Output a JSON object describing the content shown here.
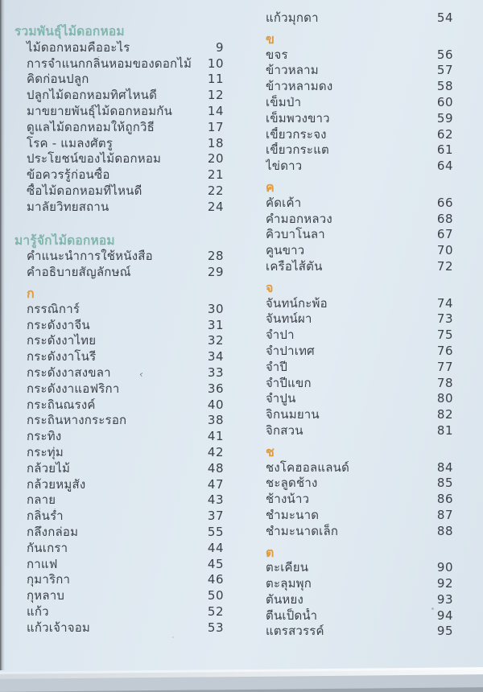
{
  "document": {
    "kind": "book-table-of-contents",
    "stray_mark": "‹",
    "columns": [
      {
        "name": "left",
        "rows": [
          {
            "kind": "header",
            "text": "รวมพันธุ์ไม้ดอกหอม"
          },
          {
            "kind": "entry",
            "text": "ไม้ดอกหอมคืออะไร",
            "page": "9"
          },
          {
            "kind": "entry",
            "text": "การจำแนกกลิ่นหอมของดอกไม้",
            "page": "10"
          },
          {
            "kind": "entry",
            "text": "คิดก่อนปลูก",
            "page": "11"
          },
          {
            "kind": "entry",
            "text": "ปลูกไม้ดอกหอมทิศไหนดี",
            "page": "12"
          },
          {
            "kind": "entry",
            "text": "มาขยายพันธุ์ไม้ดอกหอมกัน",
            "page": "14"
          },
          {
            "kind": "entry",
            "text": "ดูแลไม้ดอกหอมให้ถูกวิธี",
            "page": "17"
          },
          {
            "kind": "entry",
            "text": "โรค - แมลงศัตรู",
            "page": "18"
          },
          {
            "kind": "entry",
            "text": "ประโยชน์ของไม้ดอกหอม",
            "page": "20"
          },
          {
            "kind": "entry",
            "text": "ข้อควรรู้ก่อนซื้อ",
            "page": "21"
          },
          {
            "kind": "entry",
            "text": "ซื้อไม้ดอกหอมที่ไหนดี",
            "page": "22"
          },
          {
            "kind": "entry",
            "text": "มาลัยวิทยสถาน",
            "page": "24"
          },
          {
            "kind": "header",
            "text": "มารู้จักไม้ดอกหอม",
            "gap": "lg"
          },
          {
            "kind": "entry",
            "text": "คำแนะนำการใช้หนังสือ",
            "page": "28"
          },
          {
            "kind": "entry",
            "text": "คำอธิบายสัญลักษณ์",
            "page": "29"
          },
          {
            "kind": "section",
            "text": "ก",
            "gap": "sm"
          },
          {
            "kind": "entry",
            "text": "กรรณิการ์",
            "page": "30"
          },
          {
            "kind": "entry",
            "text": "กระดังงาจีน",
            "page": "31"
          },
          {
            "kind": "entry",
            "text": "กระดังงาไทย",
            "page": "32"
          },
          {
            "kind": "entry",
            "text": "กระดังงาโนรี",
            "page": "34"
          },
          {
            "kind": "entry",
            "text": "กระดังงาสงขลา",
            "page": "33"
          },
          {
            "kind": "entry",
            "text": "กระดังงาแอฟริกา",
            "page": "36"
          },
          {
            "kind": "entry",
            "text": "กระถินณรงค์",
            "page": "40"
          },
          {
            "kind": "entry",
            "text": "กระถินหางกระรอก",
            "page": "38"
          },
          {
            "kind": "entry",
            "text": "กระทิง",
            "page": "41"
          },
          {
            "kind": "entry",
            "text": "กระทุ่ม",
            "page": "42"
          },
          {
            "kind": "entry",
            "text": "กล้วยไม้",
            "page": "48"
          },
          {
            "kind": "entry",
            "text": "กล้วยหมูสัง",
            "page": "47"
          },
          {
            "kind": "entry",
            "text": "กลาย",
            "page": "43"
          },
          {
            "kind": "entry",
            "text": "กลิ่นร่ำ",
            "page": "37"
          },
          {
            "kind": "entry",
            "text": "กลึงกล่อม",
            "page": "55"
          },
          {
            "kind": "entry",
            "text": "กันเกรา",
            "page": "44"
          },
          {
            "kind": "entry",
            "text": "กาแฟ",
            "page": "45"
          },
          {
            "kind": "entry",
            "text": "กุมาริกา",
            "page": "46"
          },
          {
            "kind": "entry",
            "text": "กุหลาบ",
            "page": "50"
          },
          {
            "kind": "entry",
            "text": "แก้ว",
            "page": "52"
          },
          {
            "kind": "entry",
            "text": "แก้วเจ้าจอม",
            "page": "53"
          }
        ]
      },
      {
        "name": "right",
        "rows": [
          {
            "kind": "entry",
            "text": "แก้วมุกดา",
            "page": "54"
          },
          {
            "kind": "section",
            "text": "ข",
            "gap": "sm"
          },
          {
            "kind": "entry",
            "text": "ขจร",
            "page": "56"
          },
          {
            "kind": "entry",
            "text": "ข้าวหลาม",
            "page": "57"
          },
          {
            "kind": "entry",
            "text": "ข้าวหลามดง",
            "page": "58"
          },
          {
            "kind": "entry",
            "text": "เข็มป่า",
            "page": "60"
          },
          {
            "kind": "entry",
            "text": "เข็มพวงขาว",
            "page": "59"
          },
          {
            "kind": "entry",
            "text": "เขี้ยวกระจง",
            "page": "62"
          },
          {
            "kind": "entry",
            "text": "เขี้ยวกระแต",
            "page": "61"
          },
          {
            "kind": "entry",
            "text": "ไข่ดาว",
            "page": "64"
          },
          {
            "kind": "section",
            "text": "ค",
            "gap": "sm"
          },
          {
            "kind": "entry",
            "text": "คัดเค้า",
            "page": "66"
          },
          {
            "kind": "entry",
            "text": "คำมอกหลวง",
            "page": "68"
          },
          {
            "kind": "entry",
            "text": "คิวบาโนลา",
            "page": "67"
          },
          {
            "kind": "entry",
            "text": "คูนขาว",
            "page": "70"
          },
          {
            "kind": "entry",
            "text": "เครือไส้ตัน",
            "page": "72"
          },
          {
            "kind": "section",
            "text": "จ",
            "gap": "sm"
          },
          {
            "kind": "entry",
            "text": "จันทน์กะพ้อ",
            "page": "74"
          },
          {
            "kind": "entry",
            "text": "จันทน์ผา",
            "page": "73"
          },
          {
            "kind": "entry",
            "text": "จำปา",
            "page": "75"
          },
          {
            "kind": "entry",
            "text": "จำปาเทศ",
            "page": "76"
          },
          {
            "kind": "entry",
            "text": "จำปี",
            "page": "77"
          },
          {
            "kind": "entry",
            "text": "จำปีแขก",
            "page": "78"
          },
          {
            "kind": "entry",
            "text": "จำปูน",
            "page": "80"
          },
          {
            "kind": "entry",
            "text": "จิกนมยาน",
            "page": "82"
          },
          {
            "kind": "entry",
            "text": "จิกสวน",
            "page": "81"
          },
          {
            "kind": "section",
            "text": "ช",
            "gap": "sm"
          },
          {
            "kind": "entry",
            "text": "ชงโคฮอลแลนด์",
            "page": "84"
          },
          {
            "kind": "entry",
            "text": "ชะลูดช้าง",
            "page": "85"
          },
          {
            "kind": "entry",
            "text": "ช้างน้าว",
            "page": "86"
          },
          {
            "kind": "entry",
            "text": "ชำมะนาด",
            "page": "87"
          },
          {
            "kind": "entry",
            "text": "ชำมะนาดเล็ก",
            "page": "88"
          },
          {
            "kind": "section",
            "text": "ต",
            "gap": "sm"
          },
          {
            "kind": "entry",
            "text": "ตะเคียน",
            "page": "90"
          },
          {
            "kind": "entry",
            "text": "ตะลุมพุก",
            "page": "92"
          },
          {
            "kind": "entry",
            "text": "ตันหยง",
            "page": "93"
          },
          {
            "kind": "entry",
            "text": "ตีนเป็ดน้ำ",
            "page": "94"
          },
          {
            "kind": "entry",
            "text": "แตรสวรรค์",
            "page": "95"
          }
        ]
      }
    ]
  },
  "colors": {
    "background": "#dde7ef",
    "header_teal": "#80b6ab",
    "section_orange": "#e29a3b",
    "text": "#3c4147",
    "page_edge_grey": "#c2cbd3"
  }
}
